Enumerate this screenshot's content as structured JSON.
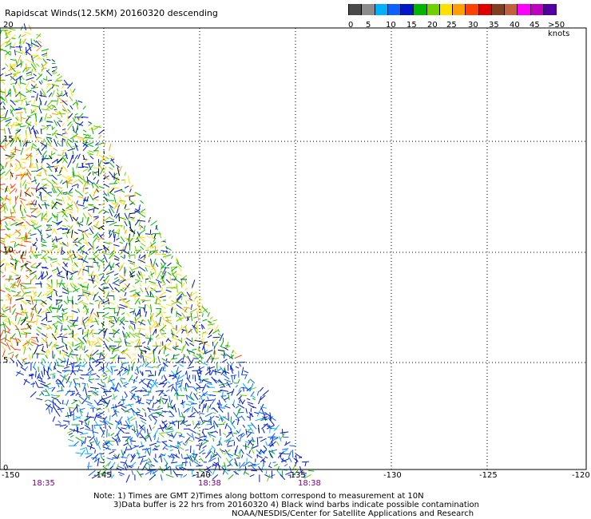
{
  "title": "Rapidscat Winds(12.5KM) 20160320 descending",
  "legend": {
    "colors": [
      "#4a4a4a",
      "#8c8c8c",
      "#00b0ff",
      "#1060ff",
      "#0018c8",
      "#00b400",
      "#70d000",
      "#ffe000",
      "#ffa000",
      "#ff4000",
      "#e00000",
      "#804020",
      "#c06040",
      "#ff00ff",
      "#c000c0",
      "#5000a0"
    ],
    "ticks": [
      "0",
      "5",
      "10",
      "15",
      "20",
      "25",
      "30",
      "35",
      "40",
      "45",
      ">50 knots"
    ]
  },
  "axes": {
    "lat_labels": [
      "20",
      "15",
      "10",
      "5",
      "0"
    ],
    "lon_labels": [
      "-150",
      "-145",
      "-140",
      "-135",
      "-130",
      "-125",
      "-120"
    ],
    "time_labels": [
      "18:35",
      "18:38",
      "18:38"
    ]
  },
  "notes": {
    "line1": "Note: 1) Times are GMT 2)Times along bottom correspond to measurement at 10N",
    "line2": "3)Data buffer is 22 hrs from 20160320 4) Black wind barbs indicate possible contamination",
    "line3": "NOAA/NESDIS/Center for Satellite Applications and Research"
  }
}
